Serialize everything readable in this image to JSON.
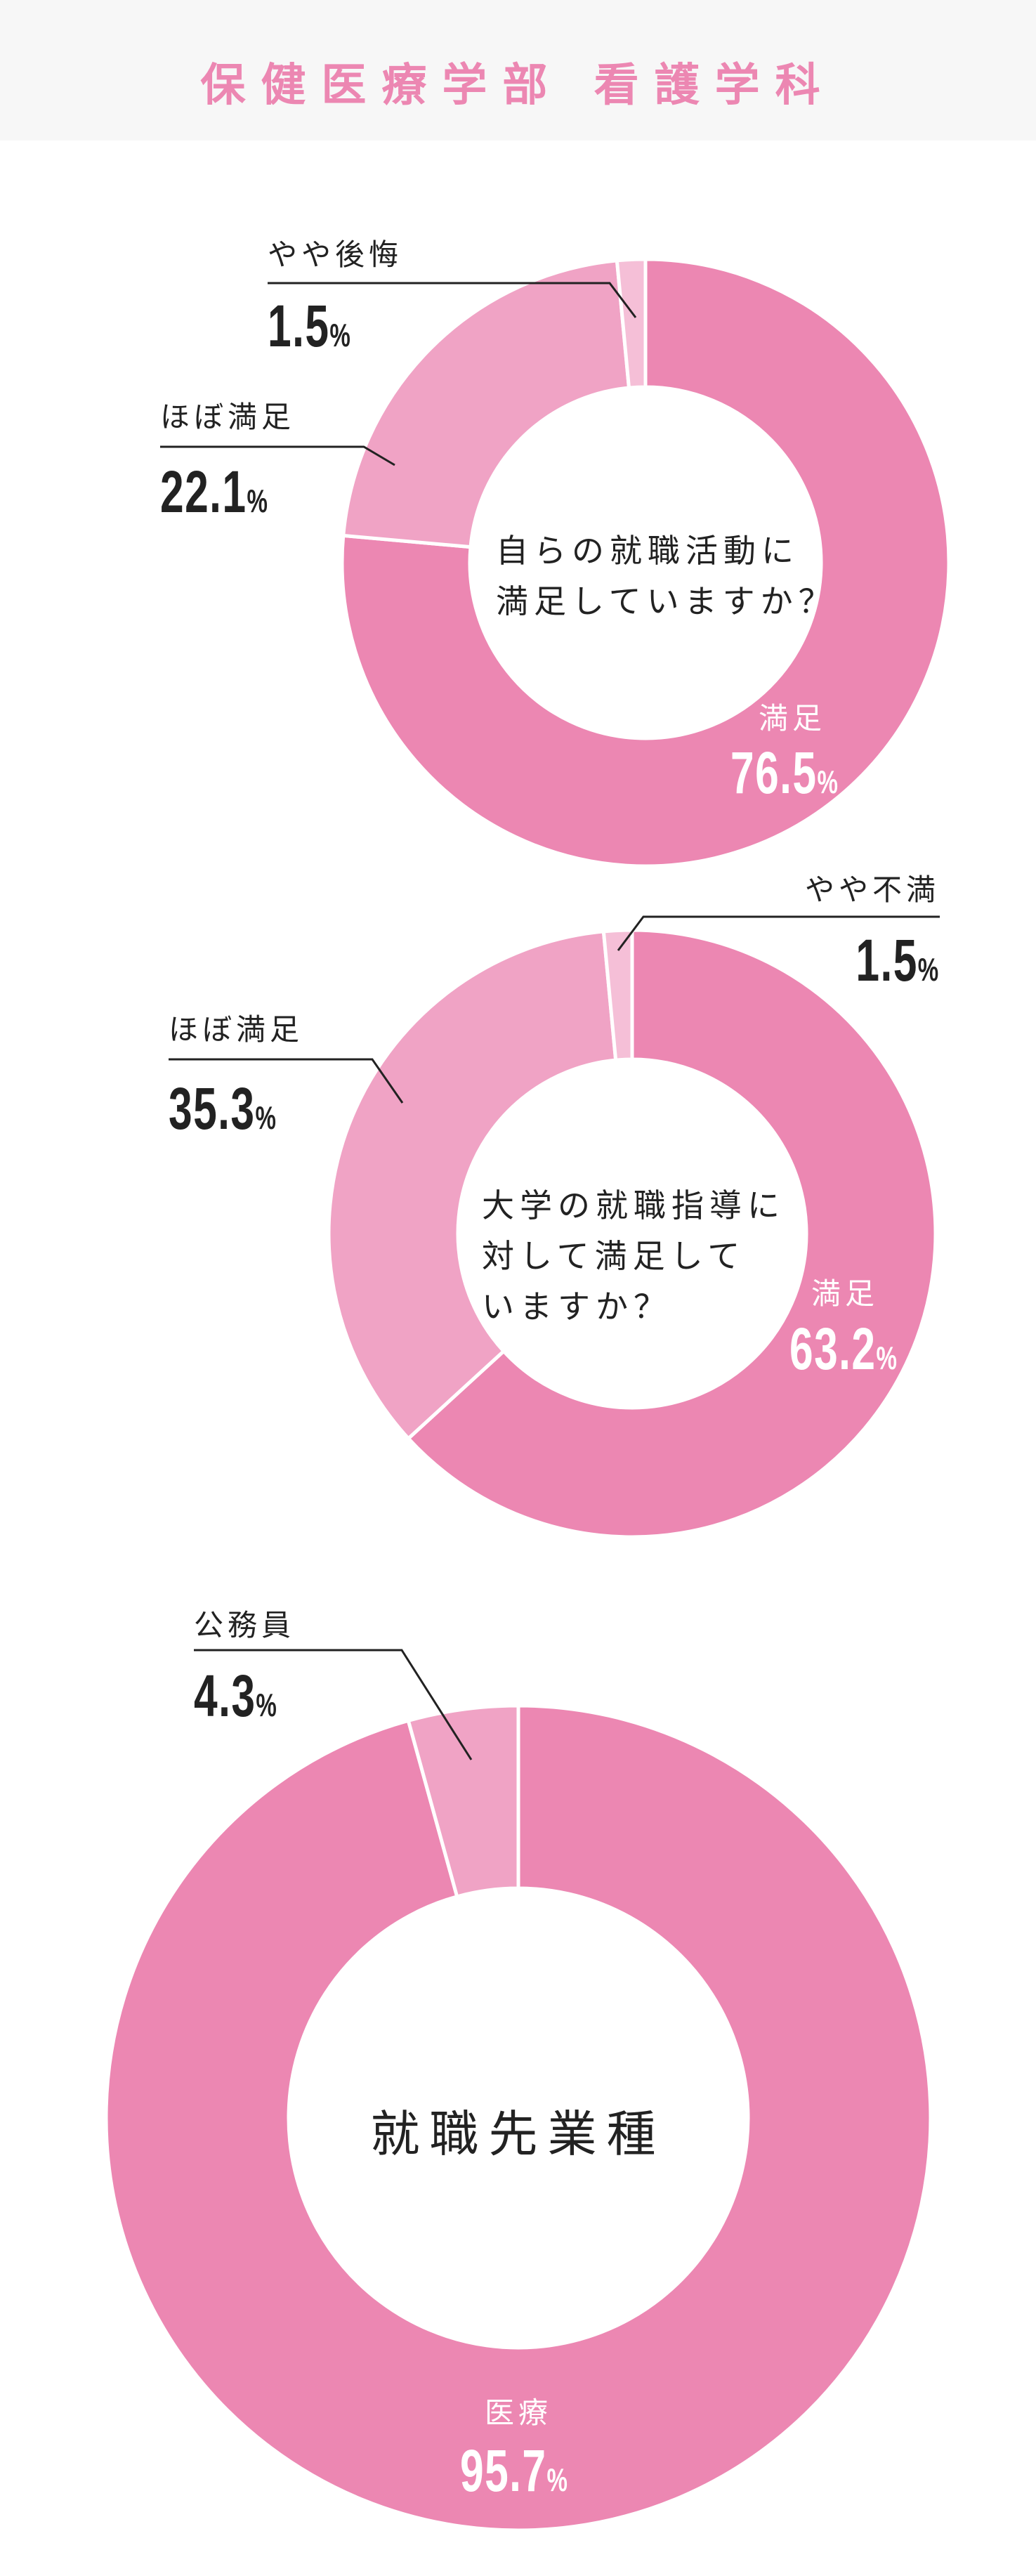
{
  "header": {
    "title": "保健医療学部 看護学科"
  },
  "colors": {
    "main": "#ec87b2",
    "mid": "#f0a3c5",
    "light": "#f5bfd7",
    "header_bg": "#f7f7f7",
    "title": "#ec87b2"
  },
  "unit": "%",
  "chart_data": [
    {
      "type": "pie",
      "variant": "donut",
      "title": "自らの就職活動に満足していますか？",
      "title_lines": [
        "自らの就職活動に",
        "満足していますか？"
      ],
      "slices": [
        {
          "label": "満足",
          "value": 76.5,
          "display": "76.5",
          "color": "#ec87b2"
        },
        {
          "label": "ほぼ満足",
          "value": 22.1,
          "display": "22.1",
          "color": "#f0a3c5"
        },
        {
          "label": "やや後悔",
          "value": 1.5,
          "display": "1.5",
          "color": "#f5bfd7"
        }
      ]
    },
    {
      "type": "pie",
      "variant": "donut",
      "title": "大学の就職指導に対して満足していますか？",
      "title_lines": [
        "大学の就職指導に",
        "対して満足して",
        "いますか？"
      ],
      "slices": [
        {
          "label": "満足",
          "value": 63.2,
          "display": "63.2",
          "color": "#ec87b2"
        },
        {
          "label": "ほぼ満足",
          "value": 35.3,
          "display": "35.3",
          "color": "#f0a3c5"
        },
        {
          "label": "やや不満",
          "value": 1.5,
          "display": "1.5",
          "color": "#f5bfd7"
        }
      ]
    },
    {
      "type": "pie",
      "variant": "donut",
      "title": "就職先業種",
      "title_lines": [
        "就職先業種"
      ],
      "slices": [
        {
          "label": "医療",
          "value": 95.7,
          "display": "95.7",
          "color": "#ec87b2"
        },
        {
          "label": "公務員",
          "value": 4.3,
          "display": "4.3",
          "color": "#f0a3c5"
        }
      ]
    }
  ]
}
